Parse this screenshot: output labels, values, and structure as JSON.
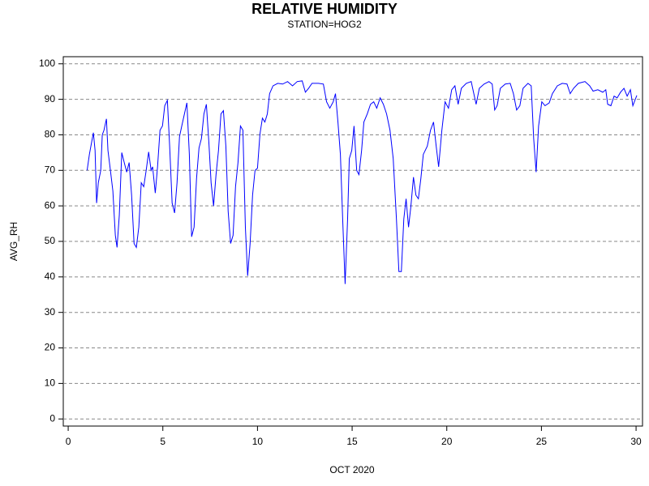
{
  "chart_data": {
    "type": "line",
    "title": "RELATIVE HUMIDITY",
    "subtitle": "STATION=HOG2",
    "x_label": "OCT 2020",
    "y_label": "AVG_RH",
    "color": "#0000ff",
    "grid": true,
    "xlim": [
      -0.26,
      30.34
    ],
    "ylim": [
      -2,
      102
    ],
    "xticks": [
      0,
      5,
      10,
      15,
      20,
      25,
      30
    ],
    "yticks": [
      0,
      10,
      20,
      30,
      40,
      50,
      60,
      70,
      80,
      90,
      100
    ],
    "x": [
      1.0,
      1.12,
      1.24,
      1.33,
      1.42,
      1.5,
      1.59,
      1.72,
      1.8,
      1.89,
      2.02,
      2.1,
      2.23,
      2.36,
      2.49,
      2.58,
      2.7,
      2.83,
      2.96,
      3.09,
      3.22,
      3.35,
      3.48,
      3.6,
      3.73,
      3.86,
      3.99,
      4.12,
      4.25,
      4.38,
      4.46,
      4.6,
      4.72,
      4.85,
      4.98,
      5.1,
      5.24,
      5.36,
      5.49,
      5.62,
      5.75,
      5.88,
      6.0,
      6.14,
      6.27,
      6.4,
      6.52,
      6.65,
      6.78,
      6.91,
      7.04,
      7.17,
      7.3,
      7.43,
      7.55,
      7.68,
      7.81,
      7.94,
      8.07,
      8.2,
      8.33,
      8.45,
      8.58,
      8.71,
      8.84,
      8.97,
      9.1,
      9.23,
      9.36,
      9.48,
      9.61,
      9.74,
      9.87,
      10.0,
      10.13,
      10.26,
      10.39,
      10.52,
      10.64,
      10.82,
      11.07,
      11.33,
      11.59,
      11.85,
      12.1,
      12.36,
      12.53,
      12.7,
      12.88,
      13.22,
      13.48,
      13.65,
      13.82,
      14.0,
      14.12,
      14.25,
      14.38,
      14.5,
      14.63,
      14.76,
      14.85,
      14.98,
      15.1,
      15.24,
      15.36,
      15.5,
      15.62,
      15.8,
      15.97,
      16.14,
      16.3,
      16.48,
      16.65,
      16.82,
      17.0,
      17.17,
      17.34,
      17.47,
      17.6,
      17.73,
      17.85,
      17.98,
      18.1,
      18.24,
      18.37,
      18.5,
      18.63,
      18.76,
      18.97,
      19.14,
      19.3,
      19.44,
      19.57,
      19.74,
      19.91,
      20.09,
      20.26,
      20.43,
      20.6,
      20.77,
      21.03,
      21.29,
      21.55,
      21.72,
      21.97,
      22.23,
      22.4,
      22.53,
      22.66,
      22.83,
      23.09,
      23.35,
      23.52,
      23.69,
      23.86,
      24.03,
      24.29,
      24.46,
      24.59,
      24.72,
      24.85,
      25.02,
      25.19,
      25.41,
      25.58,
      25.84,
      26.1,
      26.35,
      26.52,
      26.7,
      26.95,
      27.3,
      27.55,
      27.73,
      27.98,
      28.24,
      28.4,
      28.5,
      28.67,
      28.84,
      29.0,
      29.18,
      29.36,
      29.53,
      29.7,
      29.83,
      29.96,
      30.04
    ],
    "values": [
      70.0,
      74.5,
      78,
      80.6,
      75.6,
      60.8,
      66.5,
      70,
      80,
      81.3,
      84.5,
      75.6,
      70,
      64.2,
      51.7,
      48.3,
      57.4,
      75,
      72.2,
      69.5,
      72.2,
      63,
      49.4,
      48.3,
      54,
      66.5,
      65.4,
      70,
      75.2,
      70,
      71,
      63.6,
      71,
      81.3,
      82.5,
      88.2,
      89.7,
      76.8,
      60.8,
      58,
      66.5,
      79.5,
      82.5,
      85.9,
      89,
      74.5,
      51.3,
      54,
      67.7,
      76.3,
      79,
      85.9,
      88.6,
      78,
      66.5,
      60,
      68.8,
      75.6,
      85.9,
      86.8,
      76.8,
      58.5,
      49.4,
      51.7,
      65.4,
      72.2,
      82.5,
      81.3,
      54,
      40.3,
      49.4,
      63,
      70,
      70.6,
      80.2,
      84.7,
      83.6,
      85.9,
      91.6,
      93.8,
      94.5,
      94.3,
      95,
      93.8,
      95,
      95.2,
      92,
      93.1,
      94.5,
      94.5,
      94.3,
      89.3,
      87.5,
      89.3,
      91.6,
      83.6,
      74.5,
      56.3,
      38,
      56.3,
      73.3,
      75.6,
      82.5,
      70,
      68.8,
      75.6,
      83.6,
      85.9,
      88.6,
      89.3,
      87.5,
      90.4,
      88.6,
      85.9,
      81.3,
      73.3,
      56.3,
      41.5,
      41.5,
      56.3,
      62,
      54,
      59.7,
      68.1,
      63,
      62,
      67.7,
      74.5,
      76.8,
      81.3,
      83.6,
      76.8,
      71,
      81.3,
      89.3,
      87.5,
      92.7,
      93.8,
      88.6,
      93.1,
      94.5,
      95,
      88.6,
      93.1,
      94.3,
      95,
      94.3,
      87,
      88.2,
      93.1,
      94.3,
      94.5,
      91.6,
      87,
      88.2,
      93.1,
      94.5,
      93.8,
      79,
      69.5,
      82.5,
      89.3,
      88.2,
      89,
      91.6,
      93.8,
      94.5,
      94.3,
      91.6,
      93.1,
      94.5,
      95,
      93.8,
      92.3,
      92.7,
      92,
      92.7,
      88.6,
      88.2,
      90.9,
      90.4,
      92,
      93.1,
      90.9,
      92.7,
      88.2,
      90,
      91.1
    ]
  }
}
